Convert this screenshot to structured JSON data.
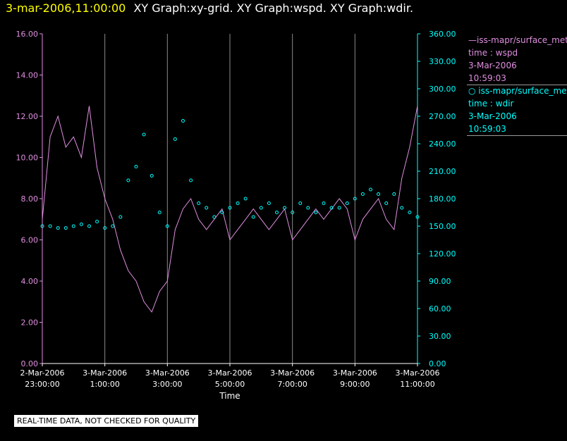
{
  "header": {
    "timestamp": "3-mar-2006,11:00:00",
    "graphs": "XY Graph:xy-grid.  XY Graph:wspd.  XY Graph:wdir."
  },
  "legend": [
    {
      "label": "iss-mapr/surface_met",
      "symbol": "line",
      "color": "#e08ee0",
      "field": "time : wspd",
      "date": "3-Mar-2006",
      "time": "10:59:03"
    },
    {
      "label": "iss-mapr/surface_met",
      "symbol": "circle",
      "color": "#00ffff",
      "field": "time : wdir",
      "date": "3-Mar-2006",
      "time": "10:59:03"
    }
  ],
  "warning": "REAL-TIME DATA, NOT CHECKED FOR QUALITY",
  "chart_data": {
    "type": "line",
    "xlabel": "Time",
    "x_range_hours": [
      -1,
      11
    ],
    "x_ticks": [
      {
        "hour": -1,
        "date": "2-Mar-2006",
        "time": "23:00:00"
      },
      {
        "hour": 1,
        "date": "3-Mar-2006",
        "time": "1:00:00"
      },
      {
        "hour": 3,
        "date": "3-Mar-2006",
        "time": "3:00:00"
      },
      {
        "hour": 5,
        "date": "3-Mar-2006",
        "time": "5:00:00"
      },
      {
        "hour": 7,
        "date": "3-Mar-2006",
        "time": "7:00:00"
      },
      {
        "hour": 9,
        "date": "3-Mar-2006",
        "time": "9:00:00"
      },
      {
        "hour": 11,
        "date": "3-Mar-2006",
        "time": "11:00:00"
      }
    ],
    "grid": "vertical",
    "left_axis": {
      "ylim": [
        0,
        16
      ],
      "ticks": [
        "0.00",
        "2.00",
        "4.00",
        "6.00",
        "8.00",
        "10.00",
        "12.00",
        "14.00",
        "16.00"
      ],
      "color": "#e08ee0"
    },
    "right_axis": {
      "ylim": [
        0,
        360
      ],
      "ticks": [
        "0.00",
        "30.00",
        "60.00",
        "90.00",
        "120.00",
        "150.00",
        "180.00",
        "210.00",
        "240.00",
        "270.00",
        "300.00",
        "330.00",
        "360.00"
      ],
      "color": "#00ffff"
    },
    "series": [
      {
        "field": "wspd",
        "axis": "left",
        "style": "line",
        "color": "#e08ee0",
        "x_hours": [
          -1.0,
          -0.75,
          -0.5,
          -0.25,
          0.0,
          0.25,
          0.5,
          0.75,
          1.0,
          1.25,
          1.5,
          1.75,
          2.0,
          2.25,
          2.5,
          2.75,
          3.0,
          3.25,
          3.5,
          3.75,
          4.0,
          4.25,
          4.5,
          4.75,
          5.0,
          5.25,
          5.5,
          5.75,
          6.0,
          6.25,
          6.5,
          6.75,
          7.0,
          7.25,
          7.5,
          7.75,
          8.0,
          8.25,
          8.5,
          8.75,
          9.0,
          9.25,
          9.5,
          9.75,
          10.0,
          10.25,
          10.5,
          10.75,
          11.0
        ],
        "values": [
          7.0,
          11.0,
          12.0,
          10.5,
          11.0,
          10.0,
          12.5,
          9.5,
          8.0,
          7.0,
          5.5,
          4.5,
          4.0,
          3.0,
          2.5,
          3.5,
          4.0,
          6.5,
          7.5,
          8.0,
          7.0,
          6.5,
          7.0,
          7.5,
          6.0,
          6.5,
          7.0,
          7.5,
          7.0,
          6.5,
          7.0,
          7.5,
          6.0,
          6.5,
          7.0,
          7.5,
          7.0,
          7.5,
          8.0,
          7.5,
          6.0,
          7.0,
          7.5,
          8.0,
          7.0,
          6.5,
          9.0,
          10.5,
          12.5
        ]
      },
      {
        "field": "wdir",
        "axis": "right",
        "style": "circle",
        "color": "#00ffff",
        "x_hours": [
          -1.0,
          -0.75,
          -0.5,
          -0.25,
          0.0,
          0.25,
          0.5,
          0.75,
          1.0,
          1.25,
          1.5,
          1.75,
          2.0,
          2.25,
          2.5,
          2.75,
          3.0,
          3.25,
          3.5,
          3.75,
          4.0,
          4.25,
          4.5,
          4.75,
          5.0,
          5.25,
          5.5,
          5.75,
          6.0,
          6.25,
          6.5,
          6.75,
          7.0,
          7.25,
          7.5,
          7.75,
          8.0,
          8.25,
          8.5,
          8.75,
          9.0,
          9.25,
          9.5,
          9.75,
          10.0,
          10.25,
          10.5,
          10.75,
          11.0
        ],
        "values": [
          150,
          150,
          148,
          148,
          150,
          152,
          150,
          155,
          148,
          150,
          160,
          200,
          215,
          250,
          205,
          165,
          150,
          245,
          265,
          200,
          175,
          170,
          160,
          165,
          170,
          175,
          180,
          160,
          170,
          175,
          165,
          170,
          165,
          175,
          170,
          165,
          175,
          170,
          170,
          175,
          180,
          185,
          190,
          185,
          175,
          185,
          170,
          165,
          160
        ]
      }
    ]
  }
}
